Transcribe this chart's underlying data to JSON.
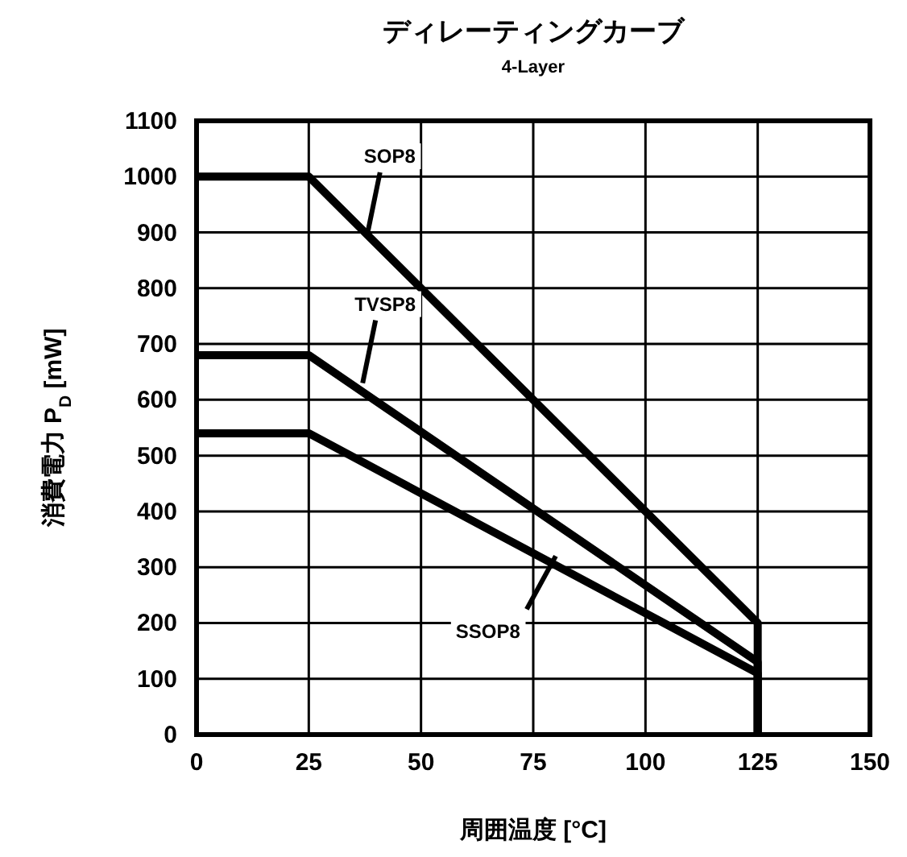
{
  "chart_data": {
    "type": "line",
    "title": "ディレーティングカーブ",
    "subtitle": "4-Layer",
    "xlabel": "周囲温度 [°C]",
    "ylabel": "消費電力 P$_{D}$ [mW]",
    "xlim": [
      0,
      150
    ],
    "xticks": [
      0,
      25,
      50,
      75,
      100,
      125,
      150
    ],
    "ylim": [
      0,
      1100
    ],
    "yticks": [
      0,
      100,
      200,
      300,
      400,
      500,
      600,
      700,
      800,
      900,
      1000,
      1100
    ],
    "grid": true,
    "marker": "none",
    "line_style": "solid",
    "series": [
      {
        "color": "#000000",
        "x": [
          0,
          25,
          125,
          125
        ],
        "values": [
          1000,
          1000,
          200,
          0
        ]
      },
      {
        "color": "#000000",
        "x": [
          0,
          25,
          125,
          125
        ],
        "values": [
          680,
          680,
          130,
          0
        ]
      },
      {
        "color": "#000000",
        "x": [
          0,
          25,
          125,
          125
        ],
        "values": [
          540,
          540,
          110,
          0
        ]
      }
    ],
    "annotations": [
      {
        "text": "SOP8",
        "x": 38,
        "y": 895
      },
      {
        "text": "TVSP8",
        "x": 37,
        "y": 630
      },
      {
        "text": "SSOP8",
        "x": 80,
        "y": 320
      }
    ]
  }
}
